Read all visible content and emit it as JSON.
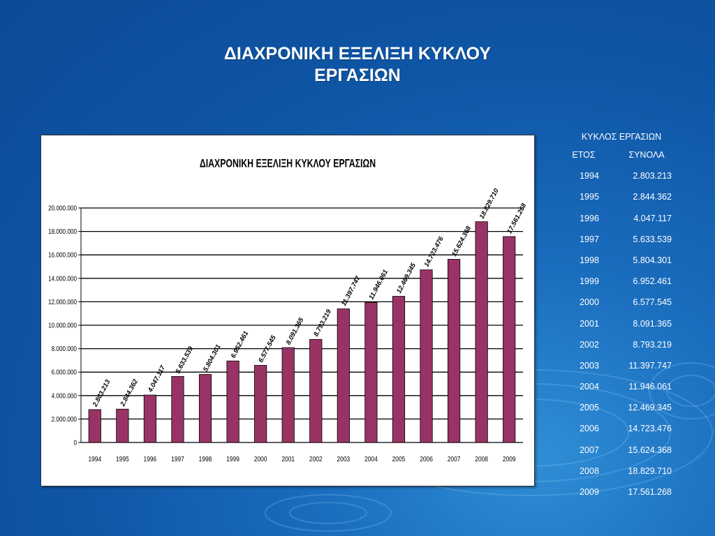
{
  "slide": {
    "title_line1": "ΔΙΑΧΡΟΝΙΚΗ ΕΞΕΛΙΞΗ ΚΥΚΛΟΥ",
    "title_line2": "ΕΡΓΑΣΙΩΝ"
  },
  "table": {
    "caption": "ΚΥΚΛΟΣ ΕΡΓΑΣΙΩΝ",
    "col_year": "ΕΤΟΣ",
    "col_total": "ΣΥΝΟΛΑ",
    "rows": [
      {
        "year": "1994",
        "total": "2.803.213"
      },
      {
        "year": "1995",
        "total": "2.844.362"
      },
      {
        "year": "1996",
        "total": "4.047.117"
      },
      {
        "year": "1997",
        "total": "5.633.539"
      },
      {
        "year": "1998",
        "total": "5.804.301"
      },
      {
        "year": "1999",
        "total": "6.952.461"
      },
      {
        "year": "2000",
        "total": "6.577.545"
      },
      {
        "year": "2001",
        "total": "8.091.365"
      },
      {
        "year": "2002",
        "total": "8.793.219"
      },
      {
        "year": "2003",
        "total": "11.397.747"
      },
      {
        "year": "2004",
        "total": "11.946.061"
      },
      {
        "year": "2005",
        "total": "12.469.345"
      },
      {
        "year": "2006",
        "total": "14.723.476"
      },
      {
        "year": "2007",
        "total": "15.624.368"
      },
      {
        "year": "2008",
        "total": "18.829.710"
      },
      {
        "year": "2009",
        "total": "17.561.268"
      }
    ]
  },
  "chart_data": {
    "type": "bar",
    "title": "ΔΙΑΧΡΟΝΙΚΗ ΕΞΕΛΙΞΗ ΚΥΚΛΟΥ ΕΡΓΑΣΙΩΝ",
    "xlabel": "",
    "ylabel": "",
    "categories": [
      "1994",
      "1995",
      "1996",
      "1997",
      "1998",
      "1999",
      "2000",
      "2001",
      "2002",
      "2003",
      "2004",
      "2005",
      "2006",
      "2007",
      "2008",
      "2009"
    ],
    "values": [
      2803213,
      2844362,
      4047117,
      5633539,
      5804301,
      6952461,
      6577545,
      8091365,
      8793219,
      11397747,
      11946061,
      12469345,
      14723476,
      15624368,
      18829710,
      17561268
    ],
    "data_labels": [
      "2.803.213",
      "2.844.362",
      "4.047.117",
      "5.633.539",
      "5.804.301",
      "6.952.461",
      "6.577.545",
      "8.091.365",
      "8.793.219",
      "11.397.747",
      "11.946.061",
      "12.469.345",
      "14.723.476",
      "15.624.368",
      "18.829.710",
      "17.561.268"
    ],
    "yticks": [
      0,
      2000000,
      4000000,
      6000000,
      8000000,
      10000000,
      12000000,
      14000000,
      16000000,
      18000000,
      20000000
    ],
    "ytick_labels": [
      "0",
      "2.000.000",
      "4.000.000",
      "6.000.000",
      "8.000.000",
      "10.000.000",
      "12.000.000",
      "14.000.000",
      "16.000.000",
      "18.000.000",
      "20.000.000"
    ],
    "ylim": [
      0,
      20000000
    ],
    "grid": true,
    "legend": "none",
    "bar_color": "#993366"
  }
}
